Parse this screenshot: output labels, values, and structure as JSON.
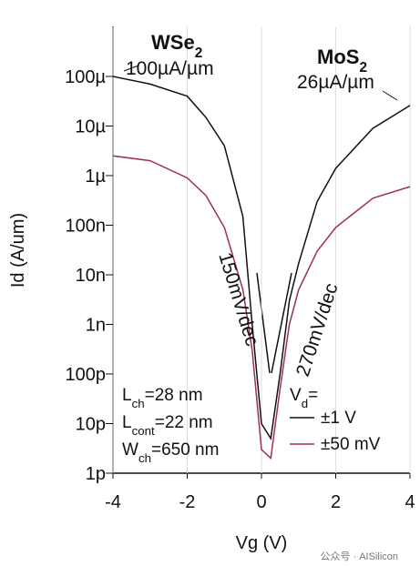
{
  "chart_data": {
    "type": "line",
    "x_label": "Vg (V)",
    "y_label": "Id (A/um)",
    "log_y": true,
    "grid": true,
    "xlim": [
      -4,
      4
    ],
    "xticks": [
      -4,
      -2,
      0,
      2,
      4
    ],
    "ylim": [
      1e-12,
      0.001
    ],
    "yticks": [
      {
        "value": 1e-12,
        "label": "1p"
      },
      {
        "value": 1e-11,
        "label": "10p"
      },
      {
        "value": 1e-10,
        "label": "100p"
      },
      {
        "value": 1e-09,
        "label": "1n"
      },
      {
        "value": 1e-08,
        "label": "10n"
      },
      {
        "value": 1e-07,
        "label": "100n"
      },
      {
        "value": 1e-06,
        "label": "1µ"
      },
      {
        "value": 1e-05,
        "label": "10µ"
      },
      {
        "value": 0.0001,
        "label": "100µ"
      }
    ],
    "x": [
      -4,
      -3,
      -2,
      -1.5,
      -1,
      -0.5,
      -0.25,
      0,
      0.25,
      0.5,
      0.75,
      1,
      1.5,
      2,
      3,
      4
    ],
    "legend_title": {
      "main": "V",
      "sub": "d",
      "rest": "="
    },
    "series": [
      {
        "name": "±1 V",
        "color": "#111111",
        "values": [
          0.0001,
          7e-05,
          4e-05,
          1.5e-05,
          4e-06,
          1.5e-07,
          1e-09,
          1e-11,
          5e-12,
          1e-10,
          3e-09,
          1.7e-08,
          3e-07,
          1.4e-06,
          9e-06,
          2.6e-05
        ]
      },
      {
        "name": "±50 mV",
        "color": "#a0304a",
        "values": [
          2.5e-06,
          2e-06,
          9e-07,
          4e-07,
          9e-08,
          5e-09,
          3e-10,
          3e-12,
          2e-12,
          5e-11,
          1e-09,
          5e-09,
          3e-08,
          9e-08,
          3.5e-07,
          6e-07
        ]
      }
    ],
    "annotations": {
      "wse2": {
        "main": "WSe",
        "sub": "2"
      },
      "wse2_current": "100µA/µm",
      "mos2": {
        "main": "MoS",
        "sub": "2"
      },
      "mos2_current": "26µA/µm",
      "slope_left": "150mV/dec",
      "slope_right": "270mV/dec",
      "lch": {
        "main": "L",
        "sub": "ch",
        "rest": "=28 nm"
      },
      "lcont": {
        "main": "L",
        "sub": "cont",
        "rest": "=22 nm"
      },
      "wch": {
        "main": "W",
        "sub": "ch",
        "rest": "=650 nm"
      }
    },
    "watermark": "公众号 · AISilicon"
  }
}
